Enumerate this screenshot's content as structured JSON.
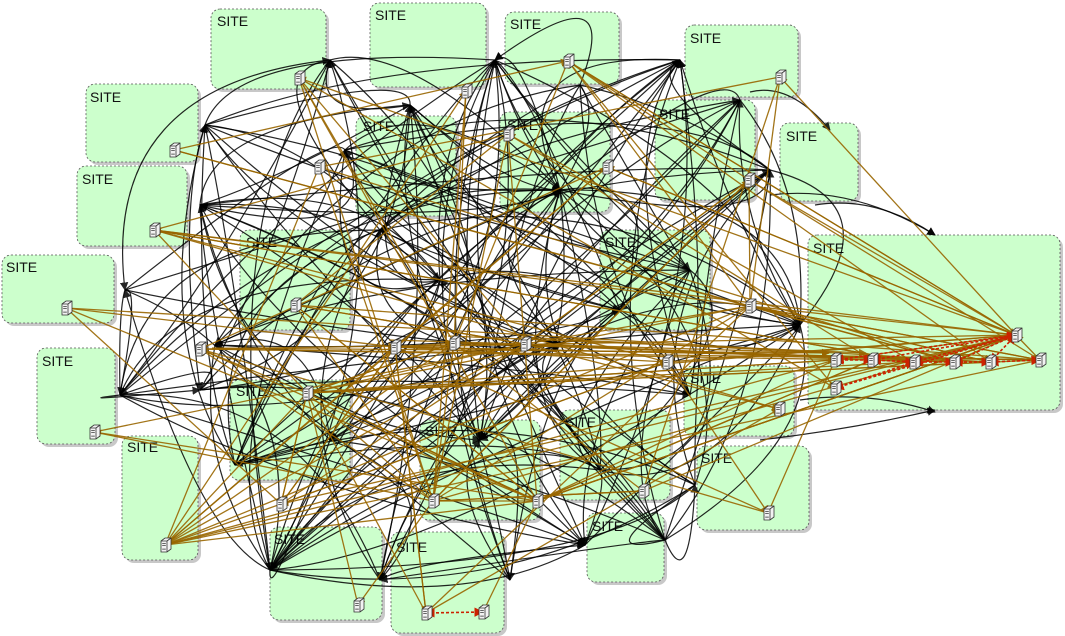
{
  "diagram": {
    "site_label": "SITE",
    "colors": {
      "site_fill": "#ccffcc",
      "site_border": "#555555",
      "edge_primary": "#000000",
      "edge_secondary": "#996600",
      "edge_tertiary": "#cc2200",
      "node_body": "#f2f2f2"
    },
    "node_icon": "server-icon",
    "sites": [
      {
        "id": "s1",
        "label": "SITE"
      },
      {
        "id": "s2",
        "label": "SITE"
      },
      {
        "id": "s3",
        "label": "SITE"
      },
      {
        "id": "s4",
        "label": "SITE"
      },
      {
        "id": "s5",
        "label": "SITE"
      },
      {
        "id": "s6",
        "label": "SITE"
      },
      {
        "id": "s7",
        "label": "SITE"
      },
      {
        "id": "s8",
        "label": "SITE"
      },
      {
        "id": "s9",
        "label": "SITE"
      },
      {
        "id": "s10",
        "label": "SITE"
      },
      {
        "id": "s11",
        "label": "SITE"
      },
      {
        "id": "s12",
        "label": "SITE"
      },
      {
        "id": "s13",
        "label": "SITE"
      },
      {
        "id": "s14",
        "label": "SITE"
      },
      {
        "id": "s15",
        "label": "SITE"
      },
      {
        "id": "s16",
        "label": "SITE"
      },
      {
        "id": "s17",
        "label": "SITE"
      },
      {
        "id": "s18",
        "label": "SITE"
      },
      {
        "id": "s19",
        "label": "SITE"
      },
      {
        "id": "s20",
        "label": "SITE"
      },
      {
        "id": "s21",
        "label": "SITE"
      },
      {
        "id": "s22",
        "label": "SITE"
      },
      {
        "id": "s23",
        "label": "SITE"
      },
      {
        "id": "s24",
        "label": "SITE"
      }
    ]
  }
}
